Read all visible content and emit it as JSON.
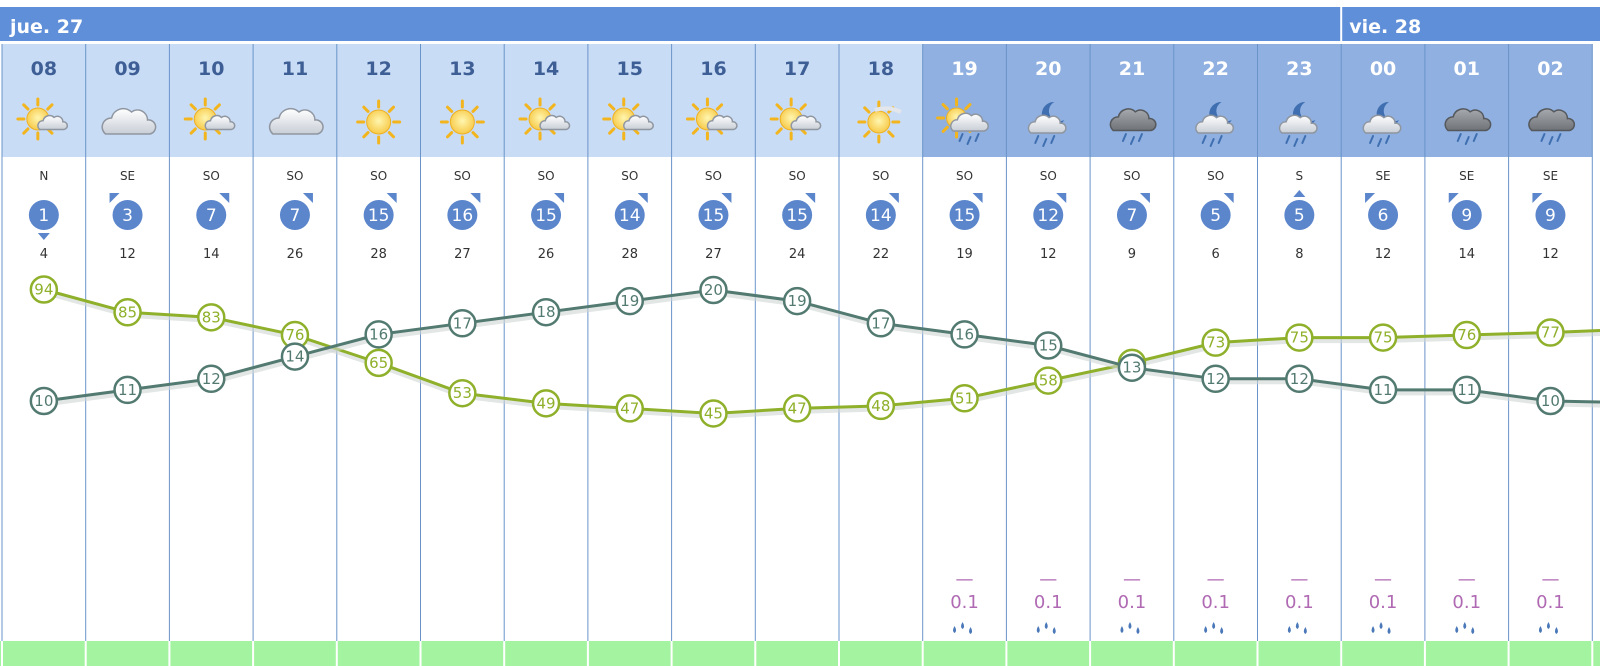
{
  "days": [
    {
      "label": "jue. 27",
      "start_index": 0
    },
    {
      "label": "vie. 28",
      "start_index": 16
    }
  ],
  "colors": {
    "day_bar": "#5f8fd9",
    "hour_day_bg": "#c9dcf6",
    "hour_night_bg": "#8fb0e0",
    "hour_day_text": "#3e5f95",
    "hour_night_text": "#ffffff",
    "wind_circle": "#5b86cc",
    "temp_line": "#527a70",
    "humidity_line": "#8fb02a",
    "precip_text": "#b06ab3",
    "grid_line": "#6a94c9",
    "bottom_band": "#a4f3a0"
  },
  "chart_data": {
    "type": "line",
    "hours": [
      "08",
      "09",
      "10",
      "11",
      "12",
      "13",
      "14",
      "15",
      "16",
      "17",
      "18",
      "19",
      "20",
      "21",
      "22",
      "23",
      "00",
      "01",
      "02"
    ],
    "night": [
      false,
      false,
      false,
      false,
      false,
      false,
      false,
      false,
      false,
      false,
      false,
      true,
      true,
      true,
      true,
      true,
      true,
      true,
      true
    ],
    "icons": [
      "sun-cloud-icon",
      "cloud-icon",
      "sun-cloud-icon",
      "cloud-icon",
      "sun-icon",
      "sun-icon",
      "sun-cloud-icon",
      "sun-cloud-icon",
      "sun-cloud-icon",
      "sun-cloud-icon",
      "sun-haze-icon",
      "sun-cloud-rain-icon",
      "moon-cloud-rain-icon",
      "cloud-rain-icon",
      "moon-cloud-rain-icon",
      "moon-cloud-rain-icon",
      "moon-cloud-rain-icon",
      "cloud-rain-icon",
      "cloud-rain-icon"
    ],
    "wind_direction": [
      "N",
      "SE",
      "SO",
      "SO",
      "SO",
      "SO",
      "SO",
      "SO",
      "SO",
      "SO",
      "SO",
      "SO",
      "SO",
      "SO",
      "SO",
      "S",
      "SE",
      "SE",
      "SE"
    ],
    "wind_speed": [
      1,
      3,
      7,
      7,
      15,
      16,
      15,
      14,
      15,
      15,
      14,
      15,
      12,
      7,
      5,
      5,
      6,
      9,
      9
    ],
    "wind_gust": [
      4,
      12,
      14,
      26,
      28,
      27,
      26,
      28,
      27,
      24,
      22,
      19,
      12,
      9,
      6,
      8,
      12,
      14,
      12
    ],
    "series": [
      {
        "name": "",
        "values": [
          10,
          11,
          12,
          14,
          16,
          17,
          18,
          19,
          20,
          19,
          17,
          16,
          15,
          13,
          12,
          12,
          11,
          11,
          10
        ]
      },
      {
        "name": "",
        "values": [
          94,
          85,
          83,
          76,
          65,
          53,
          49,
          47,
          45,
          47,
          48,
          51,
          58,
          65,
          73,
          75,
          75,
          76,
          77
        ]
      }
    ],
    "precip_marker": "—",
    "precipitation": [
      "",
      "",
      "",
      "",
      "",
      "",
      "",
      "",
      "",
      "",
      "",
      "0.1",
      "0.1",
      "0.1",
      "0.1",
      "0.1",
      "0.1",
      "0.1",
      "0.1"
    ],
    "precip_icon": "raindrops-icon"
  }
}
